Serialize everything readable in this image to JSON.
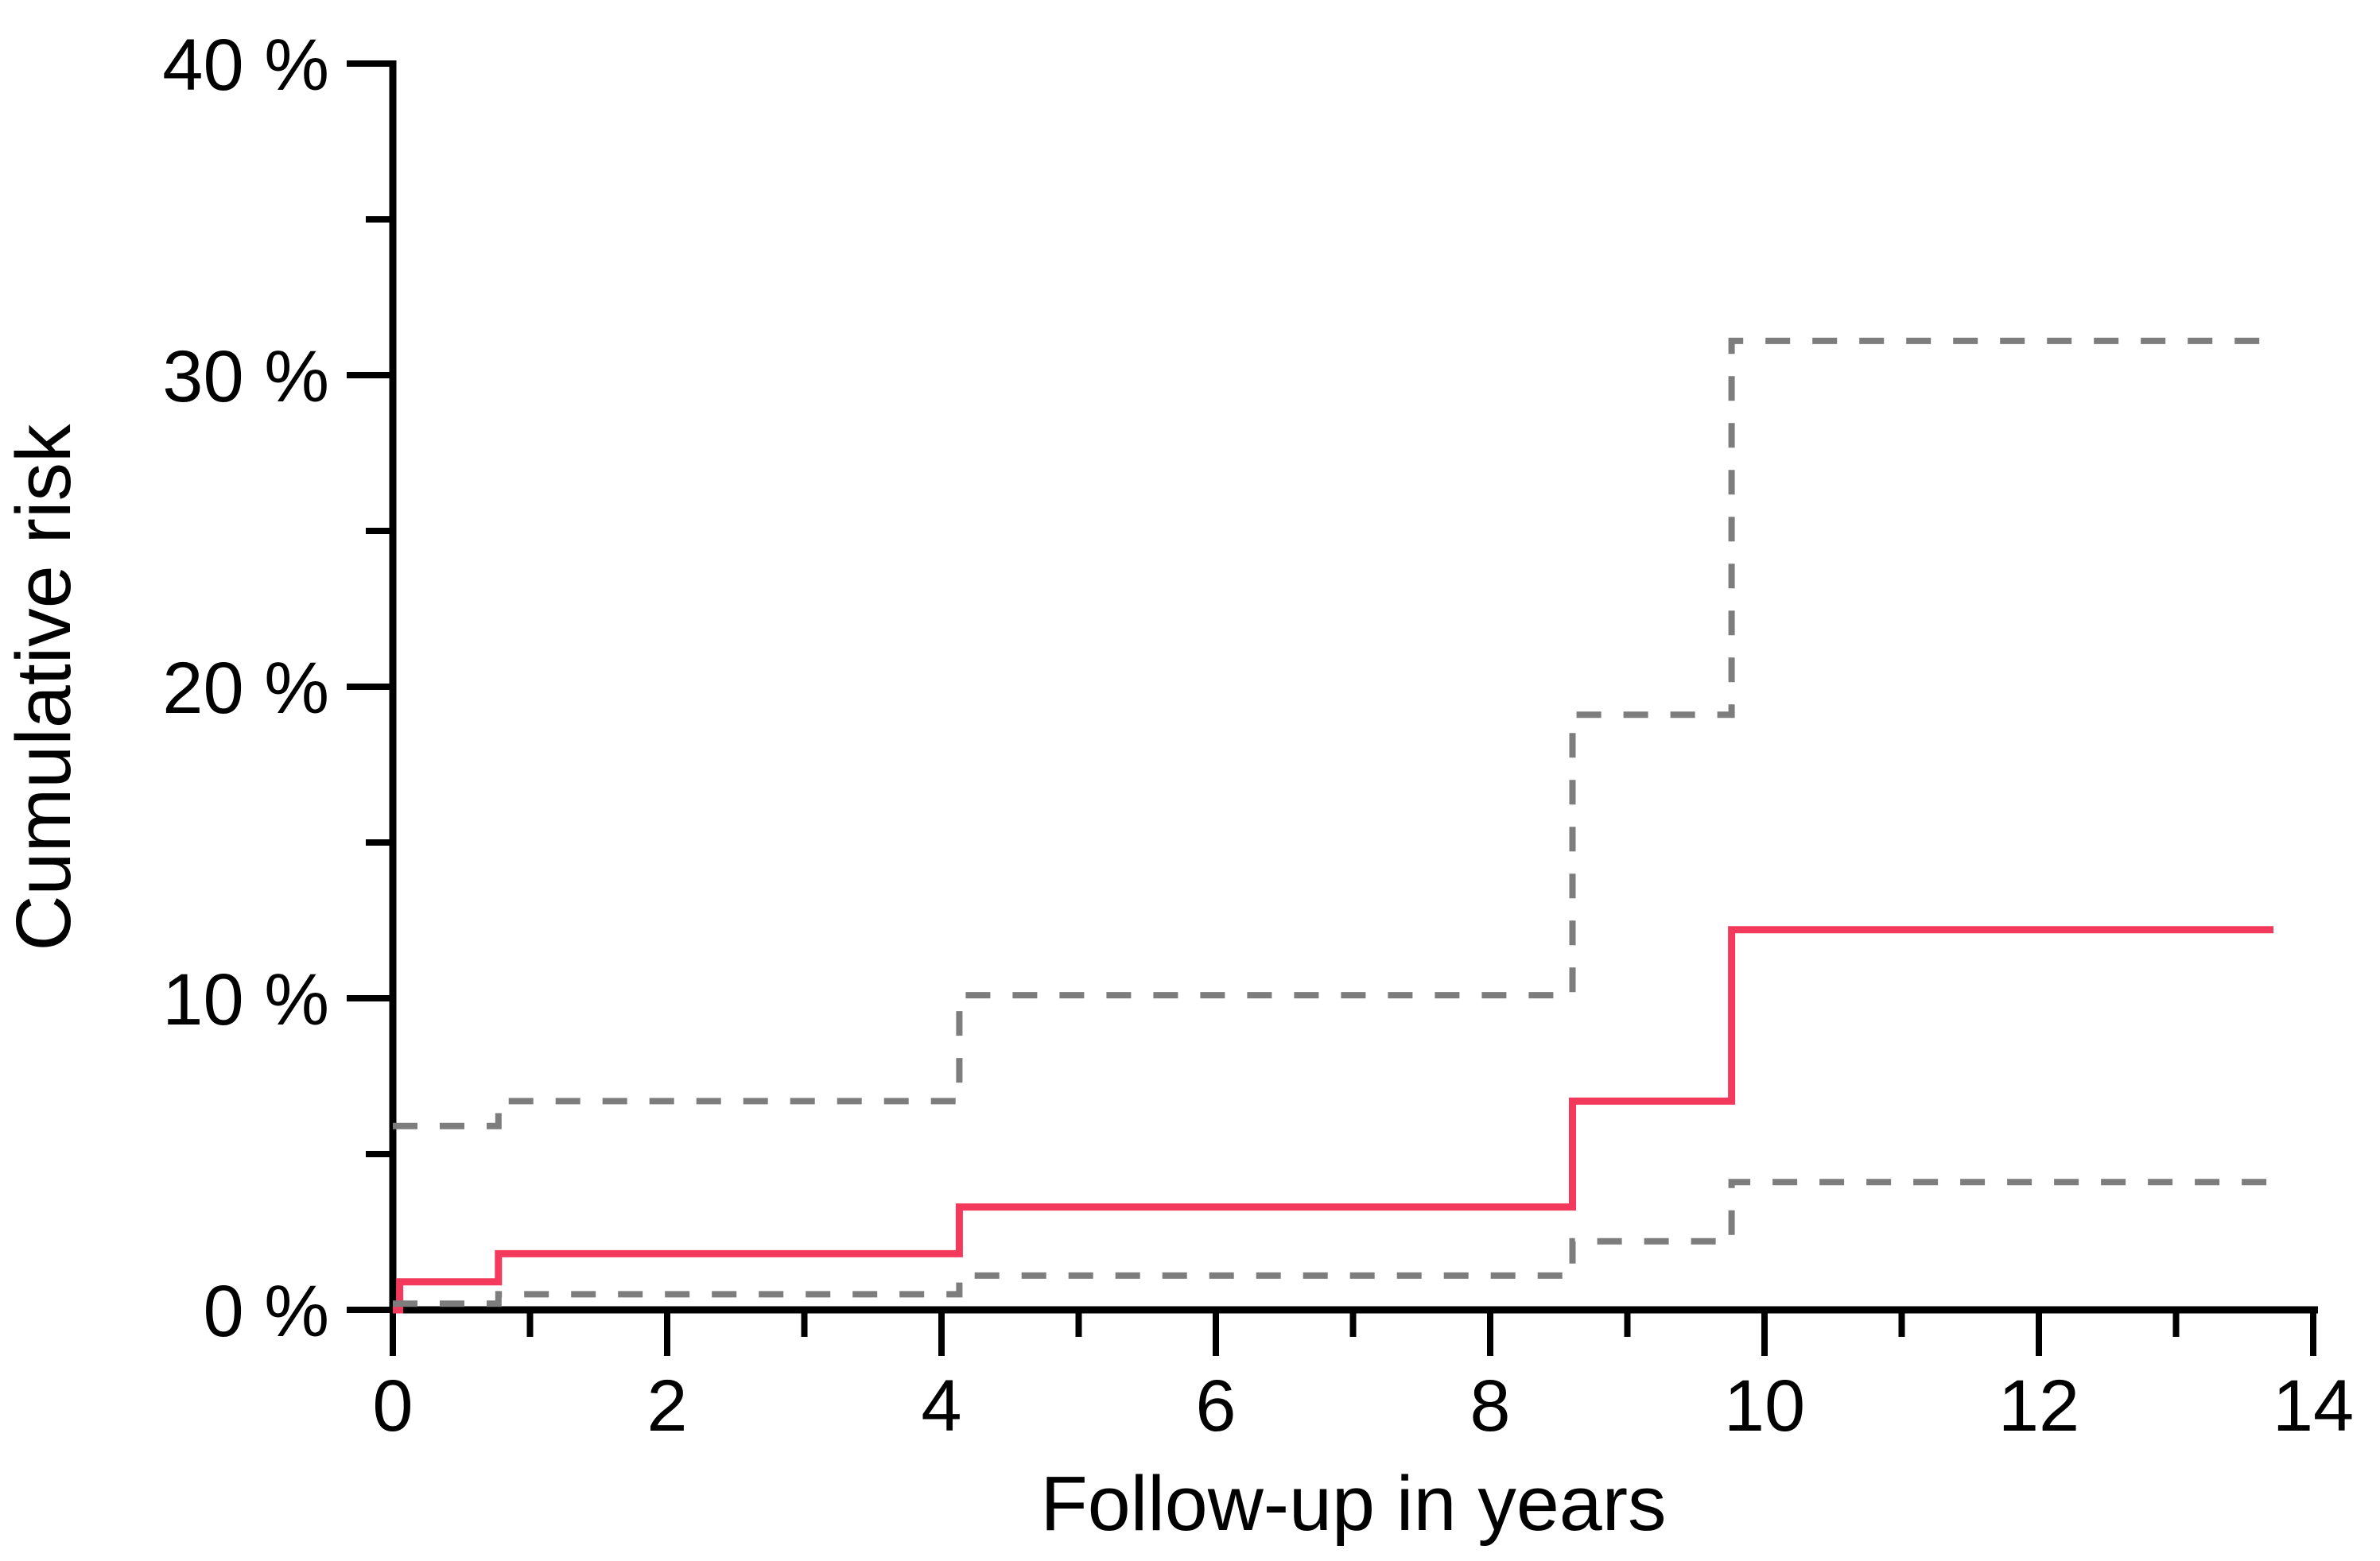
{
  "chart_data": {
    "type": "line",
    "subtype": "kaplan-meier-step",
    "title": "",
    "xlabel": "Follow-up in years",
    "ylabel": "Cumulative risk",
    "xlim": [
      0,
      14
    ],
    "ylim": [
      0,
      40
    ],
    "grid": false,
    "legend": null,
    "x_ticks_major": [
      0,
      2,
      4,
      6,
      8,
      10,
      12,
      14
    ],
    "x_ticks_minor": [
      1,
      3,
      5,
      7,
      9,
      11,
      13
    ],
    "y_ticks_major": [
      {
        "value": 0,
        "label": "0 %"
      },
      {
        "value": 10,
        "label": "10 %"
      },
      {
        "value": 20,
        "label": "20 %"
      },
      {
        "value": 30,
        "label": "30 %"
      },
      {
        "value": 40,
        "label": "40 %"
      }
    ],
    "y_ticks_minor": [
      5,
      15,
      25,
      35
    ],
    "colors": {
      "estimate": "#f43a5c",
      "confidence_interval": "#7d7d7d",
      "axis": "#000000",
      "background": "#ffffff"
    },
    "series": [
      {
        "id": "estimate",
        "style": "solid",
        "color_key": "estimate",
        "points": [
          [
            0,
            0
          ],
          [
            0.05,
            0
          ],
          [
            0.05,
            0.9
          ],
          [
            0.77,
            0.9
          ],
          [
            0.77,
            1.8
          ],
          [
            4.13,
            1.8
          ],
          [
            4.13,
            3.3
          ],
          [
            8.6,
            3.3
          ],
          [
            8.6,
            6.7
          ],
          [
            9.76,
            6.7
          ],
          [
            9.76,
            12.2
          ],
          [
            13.71,
            12.2
          ]
        ]
      },
      {
        "id": "ci_upper",
        "style": "dashed",
        "color_key": "confidence_interval",
        "points": [
          [
            0,
            5.9
          ],
          [
            0.77,
            5.9
          ],
          [
            0.77,
            6.7
          ],
          [
            4.13,
            6.7
          ],
          [
            4.13,
            10.1
          ],
          [
            8.6,
            10.1
          ],
          [
            8.6,
            19.1
          ],
          [
            9.76,
            19.1
          ],
          [
            9.76,
            31.1
          ],
          [
            13.71,
            31.1
          ]
        ]
      },
      {
        "id": "ci_lower",
        "style": "dashed",
        "color_key": "confidence_interval",
        "points": [
          [
            0,
            0.2
          ],
          [
            0.77,
            0.2
          ],
          [
            0.77,
            0.5
          ],
          [
            4.13,
            0.5
          ],
          [
            4.13,
            1.1
          ],
          [
            8.6,
            1.1
          ],
          [
            8.6,
            2.2
          ],
          [
            9.76,
            2.2
          ],
          [
            9.76,
            4.1
          ],
          [
            13.71,
            4.1
          ]
        ]
      }
    ]
  }
}
